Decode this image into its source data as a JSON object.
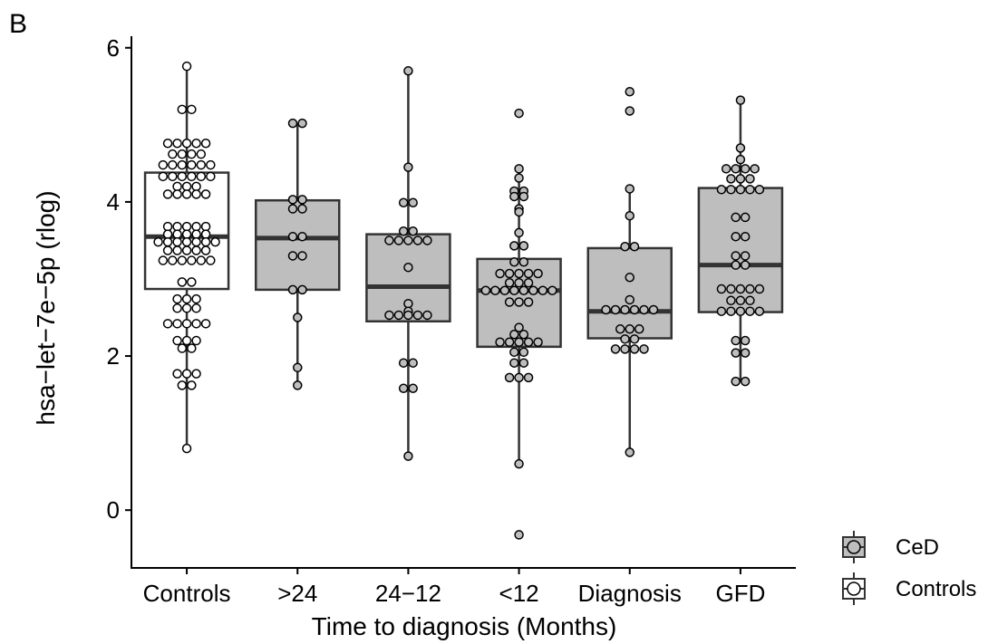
{
  "chart_data": {
    "type": "box",
    "panel_label": "B",
    "xlabel": "Time to diagnosis (Months)",
    "ylabel": "hsa−let−7e−5p (rlog)",
    "ylim": [
      -0.75,
      6.15
    ],
    "yticks": [
      0,
      2,
      4,
      6
    ],
    "grid": false,
    "legend_position": "right-bottom",
    "colors": {
      "CeD": "#bebebe",
      "Controls": "#ffffff",
      "outline": "#333333"
    },
    "legend": [
      {
        "name": "CeD",
        "fill": "#bebebe"
      },
      {
        "name": "Controls",
        "fill": "#ffffff"
      }
    ],
    "categories": [
      "Controls",
      ">24",
      "24−12",
      "<12",
      "Diagnosis",
      "GFD"
    ],
    "groups": [
      {
        "category": "Controls",
        "fill_group": "Controls",
        "box": {
          "whisker_low": 0.8,
          "q1": 2.87,
          "median": 3.55,
          "q3": 4.38,
          "whisker_high": 5.76
        },
        "points": [
          5.76,
          5.2,
          5.2,
          4.76,
          4.76,
          4.76,
          4.76,
          4.76,
          4.62,
          4.62,
          4.62,
          4.62,
          4.48,
          4.48,
          4.48,
          4.48,
          4.48,
          4.48,
          4.33,
          4.33,
          4.33,
          4.33,
          4.33,
          4.33,
          4.2,
          4.2,
          4.2,
          4.1,
          4.1,
          4.1,
          4.1,
          4.1,
          3.68,
          3.68,
          3.68,
          3.68,
          3.68,
          3.58,
          3.58,
          3.58,
          3.58,
          3.58,
          3.48,
          3.48,
          3.48,
          3.48,
          3.48,
          3.48,
          3.48,
          3.37,
          3.37,
          3.37,
          3.37,
          3.37,
          3.24,
          3.24,
          3.24,
          3.24,
          3.24,
          3.24,
          2.96,
          2.96,
          2.74,
          2.74,
          2.74,
          2.62,
          2.62,
          2.62,
          2.42,
          2.42,
          2.42,
          2.42,
          2.42,
          2.2,
          2.2,
          2.2,
          2.1,
          2.1,
          1.77,
          1.77,
          1.77,
          1.62,
          1.62,
          0.8
        ]
      },
      {
        "category": ">24",
        "fill_group": "CeD",
        "box": {
          "whisker_low": 1.62,
          "q1": 2.86,
          "median": 3.53,
          "q3": 4.02,
          "whisker_high": 5.02
        },
        "points": [
          5.02,
          5.02,
          4.03,
          4.03,
          3.91,
          3.91,
          3.55,
          3.55,
          3.3,
          3.3,
          2.86,
          2.86,
          2.5,
          1.85,
          1.62
        ]
      },
      {
        "category": "24−12",
        "fill_group": "CeD",
        "box": {
          "whisker_low": 0.7,
          "q1": 2.45,
          "median": 2.9,
          "q3": 3.58,
          "whisker_high": 5.7
        },
        "points": [
          5.7,
          4.45,
          3.99,
          3.99,
          3.62,
          3.62,
          3.5,
          3.5,
          3.5,
          3.5,
          3.5,
          3.15,
          2.68,
          2.58,
          2.53,
          2.53,
          2.53,
          2.53,
          2.53,
          1.91,
          1.91,
          1.58,
          1.58,
          0.7
        ]
      },
      {
        "category": "<12",
        "fill_group": "CeD",
        "box": {
          "whisker_low": 0.6,
          "q1": 2.12,
          "median": 2.85,
          "q3": 3.26,
          "whisker_high": 4.43
        },
        "points": [
          5.15,
          4.43,
          4.31,
          4.14,
          4.14,
          4.07,
          4.07,
          3.91,
          3.87,
          3.6,
          3.43,
          3.43,
          3.22,
          3.22,
          3.07,
          3.07,
          3.07,
          3.07,
          3.07,
          2.95,
          2.95,
          2.95,
          2.85,
          2.85,
          2.85,
          2.85,
          2.85,
          2.85,
          2.85,
          2.85,
          2.7,
          2.7,
          2.7,
          2.37,
          2.28,
          2.28,
          2.18,
          2.18,
          2.18,
          2.18,
          2.18,
          2.05,
          2.05,
          1.91,
          1.91,
          1.72,
          1.72,
          1.72,
          0.6,
          -0.32
        ]
      },
      {
        "category": "Diagnosis",
        "fill_group": "CeD",
        "box": {
          "whisker_low": 0.75,
          "q1": 2.23,
          "median": 2.58,
          "q3": 3.4,
          "whisker_high": 4.17
        },
        "points": [
          5.43,
          5.18,
          4.17,
          3.82,
          3.42,
          3.42,
          3.02,
          2.73,
          2.6,
          2.6,
          2.6,
          2.6,
          2.6,
          2.6,
          2.35,
          2.35,
          2.35,
          2.22,
          2.22,
          2.09,
          2.09,
          2.09,
          2.09,
          0.75
        ]
      },
      {
        "category": "GFD",
        "fill_group": "CeD",
        "box": {
          "whisker_low": 1.67,
          "q1": 2.57,
          "median": 3.18,
          "q3": 4.18,
          "whisker_high": 5.32
        },
        "points": [
          5.32,
          4.7,
          4.55,
          4.43,
          4.43,
          4.43,
          4.43,
          4.3,
          4.3,
          4.3,
          4.16,
          4.16,
          4.16,
          4.16,
          4.16,
          3.8,
          3.8,
          3.55,
          3.55,
          3.3,
          3.3,
          3.18,
          3.18,
          2.87,
          2.87,
          2.87,
          2.87,
          2.87,
          2.72,
          2.72,
          2.72,
          2.58,
          2.58,
          2.58,
          2.58,
          2.58,
          2.2,
          2.2,
          2.04,
          2.04,
          1.67,
          1.67
        ]
      }
    ]
  }
}
